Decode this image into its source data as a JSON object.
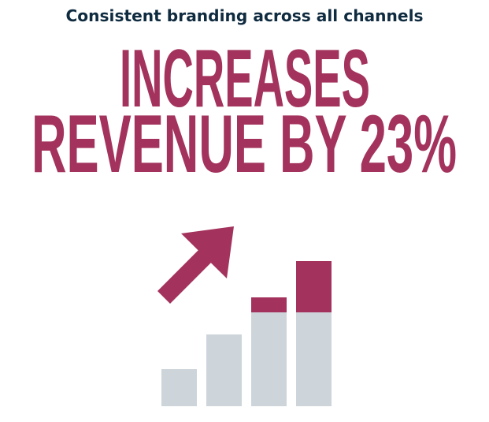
{
  "header": {
    "subtitle": "Consistent branding across all channels",
    "headline": [
      "INCREASES",
      "REVENUE BY 23%"
    ]
  }
}
